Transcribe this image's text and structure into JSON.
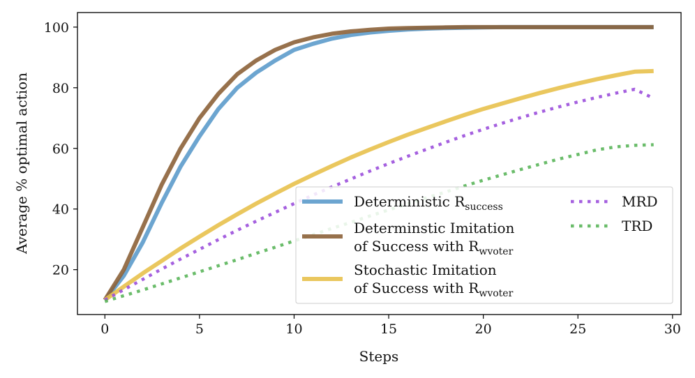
{
  "chart_data": {
    "type": "line",
    "title": "",
    "xlabel": "Steps",
    "ylabel": "Average % optimal action",
    "xlim": [
      -1.45,
      30.45
    ],
    "ylim": [
      5.2,
      104.8
    ],
    "xticks": [
      0,
      5,
      10,
      15,
      20,
      25,
      30
    ],
    "yticks": [
      20,
      40,
      60,
      80,
      100
    ],
    "grid": false,
    "legend": {
      "location": "lower-right",
      "columns": 2
    },
    "x": [
      0,
      1,
      2,
      3,
      4,
      5,
      6,
      7,
      8,
      9,
      10,
      11,
      12,
      13,
      14,
      15,
      16,
      17,
      18,
      19,
      20,
      21,
      22,
      23,
      24,
      25,
      26,
      27,
      28,
      29
    ],
    "series": [
      {
        "name": "Deterministic R_success",
        "legend_lines": [
          "Deterministic R",
          "success"
        ],
        "color": "#5c9bcb",
        "style": "solid",
        "values": [
          10,
          18,
          29,
          42,
          54,
          64,
          73,
          80,
          85,
          89,
          92.5,
          94.5,
          96.2,
          97.4,
          98.2,
          98.8,
          99.2,
          99.5,
          99.7,
          99.8,
          99.9,
          100,
          100,
          100,
          100,
          100,
          100,
          100,
          100,
          100
        ]
      },
      {
        "name": "Determinstic Imitation of Success with R_wvoter",
        "legend_lines": [
          "Determinstic Imitation",
          "of Success with R",
          "wvoter"
        ],
        "color": "#8c6239",
        "style": "solid",
        "values": [
          10,
          20,
          34,
          48,
          60,
          70,
          78,
          84.5,
          89,
          92.5,
          95,
          96.6,
          97.8,
          98.6,
          99.1,
          99.5,
          99.7,
          99.8,
          99.9,
          100,
          100,
          100,
          100,
          100,
          100,
          100,
          100,
          100,
          100,
          100
        ]
      },
      {
        "name": "Stochastic Imitation of Success with R_wvoter",
        "legend_lines": [
          "Stochastic Imitation",
          "of Success with R",
          "wvoter"
        ],
        "color": "#e8c14d",
        "style": "solid",
        "values": [
          10,
          14.4,
          18.8,
          22.9,
          27,
          30.9,
          34.7,
          38.3,
          41.8,
          45.1,
          48.3,
          51.3,
          54.2,
          57,
          59.6,
          62.1,
          64.5,
          66.7,
          68.9,
          71,
          73,
          74.8,
          76.6,
          78.3,
          79.9,
          81.4,
          82.8,
          84.1,
          85.3,
          85.5
        ]
      },
      {
        "name": "MRD",
        "legend_lines": [
          "MRD"
        ],
        "color": "#9b4fdc",
        "style": "dotted",
        "values": [
          10,
          13.4,
          16.8,
          20.2,
          23.5,
          26.7,
          29.9,
          33,
          36,
          38.9,
          41.8,
          44.6,
          47.3,
          49.9,
          52.5,
          55,
          57.4,
          59.7,
          62,
          64.2,
          66.3,
          68.3,
          70.2,
          72,
          73.7,
          75.3,
          76.8,
          78.2,
          79.5,
          76.5
        ]
      },
      {
        "name": "TRD",
        "legend_lines": [
          "TRD"
        ],
        "color": "#5ab55a",
        "style": "dotted",
        "values": [
          9.5,
          11.4,
          13.3,
          15.3,
          17.3,
          19.3,
          21.3,
          23.3,
          25.4,
          27.4,
          29.5,
          31.5,
          33.6,
          35.6,
          37.7,
          39.7,
          41.7,
          43.7,
          45.6,
          47.6,
          49.5,
          51.3,
          53.1,
          54.8,
          56.5,
          58,
          59.5,
          60.5,
          61,
          61.2
        ]
      }
    ]
  }
}
